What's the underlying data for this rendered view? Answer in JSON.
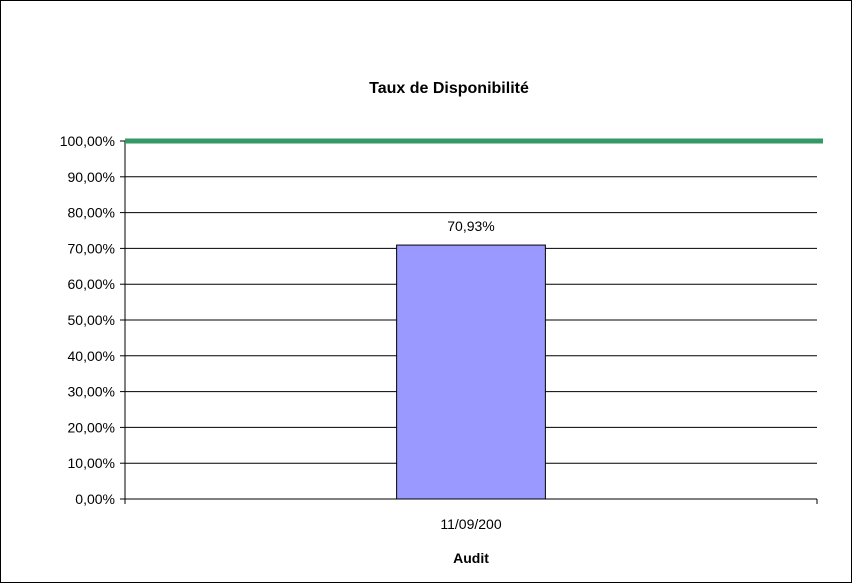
{
  "chart_data": {
    "type": "bar",
    "title": "Taux de Disponibilité",
    "xlabel": "Audit",
    "ylabel": "",
    "categories": [
      "11/09/200"
    ],
    "series": [
      {
        "values": [
          70.93
        ],
        "color": "#9999ff"
      }
    ],
    "target_line": {
      "value": 100,
      "color": "#339966"
    },
    "data_labels": [
      "70,93%"
    ],
    "ylim": [
      0,
      100
    ],
    "yticks": [
      0,
      10,
      20,
      30,
      40,
      50,
      60,
      70,
      80,
      90,
      100
    ],
    "ytick_labels": [
      "0,00%",
      "10,00%",
      "20,00%",
      "30,00%",
      "40,00%",
      "50,00%",
      "60,00%",
      "70,00%",
      "80,00%",
      "90,00%",
      "100,00%"
    ],
    "grid": true,
    "legend": "none"
  }
}
